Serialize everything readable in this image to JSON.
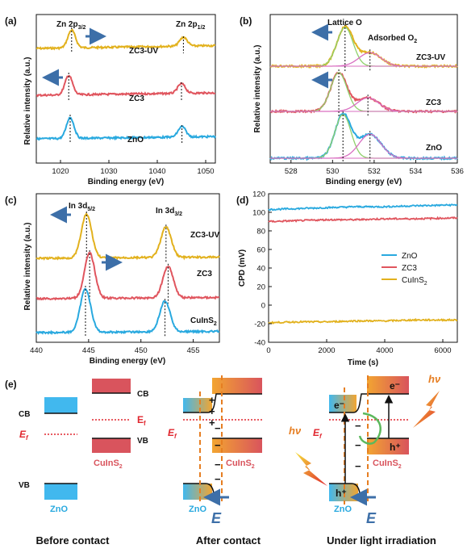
{
  "colors": {
    "zno": "#29a9df",
    "zc3": "#e0555e",
    "zc3uv": "#e2b11d",
    "cuins2": "#e2b11d",
    "arrow": "#3d6fa8",
    "fit_green": "#8fd06b",
    "fit_pink": "#d96fc1",
    "fermi": "#e0262e",
    "orange": "#e67e22",
    "red_band": "#d9545d",
    "blue_band": "#41b8ee"
  },
  "panels": {
    "a": {
      "label": "(a)",
      "xlabel": "Binding energy (eV)",
      "ylabel": "Relative intensity (a.u.)",
      "xticks": [
        "1020",
        "1030",
        "1040",
        "1050"
      ],
      "peak1": "Zn 2p",
      "peak1_sub": "3/2",
      "peak2": "Zn 2p",
      "peak2_sub": "1/2",
      "traces": [
        "ZC3-UV",
        "ZC3",
        "ZnO"
      ]
    },
    "b": {
      "label": "(b)",
      "xlabel": "Binding energy (eV)",
      "ylabel": "Relative intensity (a.u.)",
      "xticks": [
        "528",
        "530",
        "532",
        "534",
        "536"
      ],
      "ann1": "Lattice O",
      "ann2": "Adsorbed O",
      "ann2_sub": "2",
      "traces": [
        "ZC3-UV",
        "ZC3",
        "ZnO"
      ]
    },
    "c": {
      "label": "(c)",
      "xlabel": "Binding energy (eV)",
      "ylabel": "Relative intensity (a.u.)",
      "xticks": [
        "440",
        "445",
        "450",
        "455"
      ],
      "peak1": "In 3d",
      "peak1_sub": "5/2",
      "peak2": "In 3d",
      "peak2_sub": "3/2",
      "traces": [
        "ZC3-UV",
        "ZC3",
        "CuInS2"
      ]
    },
    "d": {
      "label": "(d)",
      "xlabel": "Time (s)",
      "ylabel": "CPD (mV)",
      "xticks": [
        "0",
        "2000",
        "4000",
        "6000"
      ],
      "yticks": [
        "120",
        "100",
        "80",
        "60",
        "40",
        "20",
        "0",
        "-20",
        "-40"
      ],
      "legend": [
        "ZnO",
        "ZC3",
        "CuInS2"
      ]
    },
    "e": {
      "label": "(e)",
      "cb": "CB",
      "vb": "VB",
      "ef": "E",
      "ef_sub": "f",
      "zno": "ZnO",
      "cuins2": "CuInS2",
      "e_field": "E",
      "electron": "e⁻",
      "hole": "h⁺",
      "hv": "hν",
      "plus": "+",
      "minus": "−",
      "captions": [
        "Before contact",
        "After contact",
        "Under light irradiation"
      ]
    }
  },
  "chart_data": [
    {
      "type": "line",
      "title": "",
      "xlabel": "Binding energy (eV)",
      "ylabel": "Relative intensity (a.u.)",
      "xlim": [
        1015,
        1052
      ],
      "x_reversed": false,
      "series": [
        {
          "name": "ZC3-UV",
          "peaks": [
            {
              "center": 1022.3,
              "height": 1.0
            },
            {
              "center": 1045.4,
              "height": 0.5
            }
          ]
        },
        {
          "name": "ZC3",
          "peaks": [
            {
              "center": 1021.7,
              "height": 1.0
            },
            {
              "center": 1045.0,
              "height": 0.5
            }
          ]
        },
        {
          "name": "ZnO",
          "peaks": [
            {
              "center": 1022.0,
              "height": 1.0
            },
            {
              "center": 1045.1,
              "height": 0.5
            }
          ]
        }
      ]
    },
    {
      "type": "line",
      "title": "",
      "xlabel": "Binding energy (eV)",
      "ylabel": "Relative intensity (a.u.)",
      "xlim": [
        527,
        536
      ],
      "series": [
        {
          "name": "ZC3-UV",
          "peaks": [
            {
              "center": 530.6,
              "height": 1.0
            },
            {
              "center": 531.8,
              "height": 0.35
            }
          ]
        },
        {
          "name": "ZC3",
          "peaks": [
            {
              "center": 530.3,
              "height": 1.0
            },
            {
              "center": 531.7,
              "height": 0.35
            }
          ]
        },
        {
          "name": "ZnO",
          "peaks": [
            {
              "center": 530.5,
              "height": 1.0
            },
            {
              "center": 531.8,
              "height": 0.55
            }
          ]
        }
      ]
    },
    {
      "type": "line",
      "title": "",
      "xlabel": "Binding energy (eV)",
      "ylabel": "Relative intensity (a.u.)",
      "xlim": [
        440,
        457.5
      ],
      "series": [
        {
          "name": "ZC3-UV",
          "peaks": [
            {
              "center": 444.8,
              "height": 1.0
            },
            {
              "center": 452.4,
              "height": 0.7
            }
          ]
        },
        {
          "name": "ZC3",
          "peaks": [
            {
              "center": 445.1,
              "height": 1.0
            },
            {
              "center": 452.6,
              "height": 0.7
            }
          ]
        },
        {
          "name": "CuInS2",
          "peaks": [
            {
              "center": 444.7,
              "height": 1.0
            },
            {
              "center": 452.3,
              "height": 0.7
            }
          ]
        }
      ]
    },
    {
      "type": "line",
      "title": "",
      "xlabel": "Time (s)",
      "ylabel": "CPD (mV)",
      "xlim": [
        0,
        6500
      ],
      "ylim": [
        -40,
        120
      ],
      "series": [
        {
          "name": "ZnO",
          "x": [
            0,
            1000,
            2000,
            3000,
            4000,
            5000,
            6500
          ],
          "y": [
            103,
            104,
            105,
            106,
            106,
            107,
            108
          ]
        },
        {
          "name": "ZC3",
          "x": [
            0,
            1000,
            2000,
            3000,
            4000,
            5000,
            6500
          ],
          "y": [
            90,
            91,
            92,
            92,
            93,
            93,
            94
          ]
        },
        {
          "name": "CuInS2",
          "x": [
            0,
            1000,
            2000,
            3000,
            4000,
            5000,
            6500
          ],
          "y": [
            -19,
            -18,
            -18,
            -17,
            -17,
            -16,
            -16
          ]
        }
      ]
    }
  ]
}
